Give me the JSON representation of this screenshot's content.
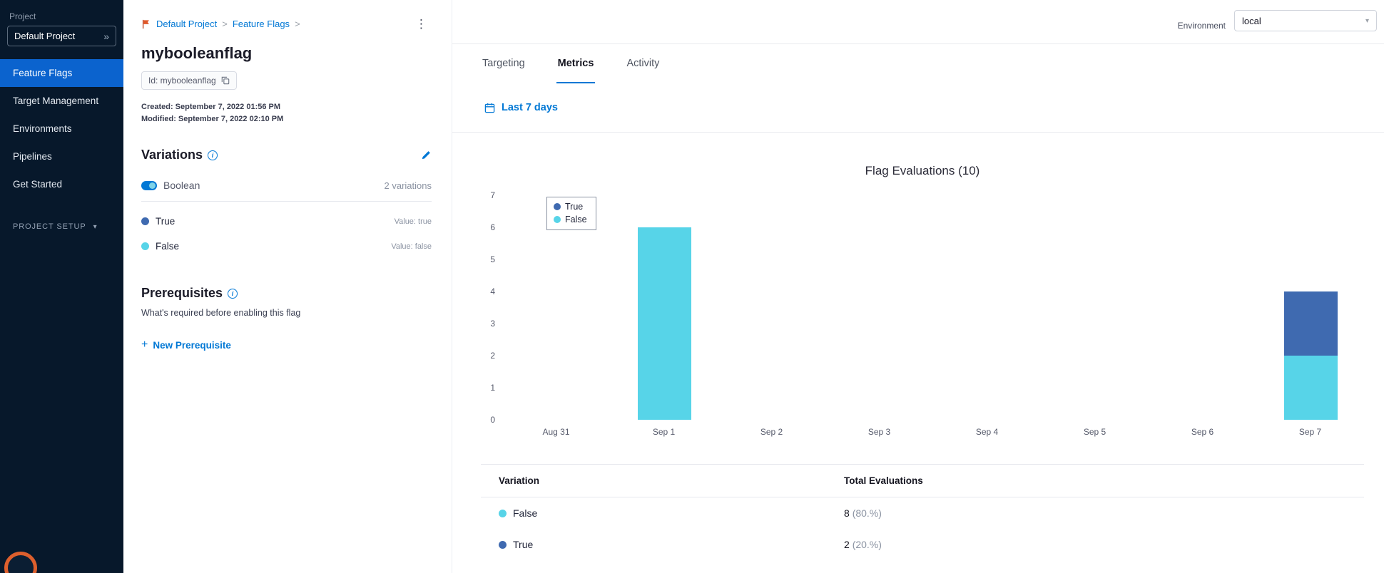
{
  "colors": {
    "accent_blue": "#0278d5",
    "active_nav": "#0b63ce",
    "sidebar_bg": "#07182b",
    "true_color": "#3f6ab0",
    "false_color": "#57d4e8"
  },
  "sidebar": {
    "project_label": "Project",
    "project_name": "Default Project",
    "items": [
      {
        "label": "Feature Flags",
        "active": true
      },
      {
        "label": "Target Management",
        "active": false
      },
      {
        "label": "Environments",
        "active": false
      },
      {
        "label": "Pipelines",
        "active": false
      },
      {
        "label": "Get Started",
        "active": false
      }
    ],
    "project_setup_label": "PROJECT SETUP"
  },
  "topbar": {
    "environment_label": "Environment",
    "environment_value": "local"
  },
  "breadcrumb": {
    "project": "Default Project",
    "section": "Feature Flags",
    "separator": ">"
  },
  "flag": {
    "title": "mybooleanflag",
    "id_badge": "Id: mybooleanflag",
    "created": "Created: September 7, 2022 01:56 PM",
    "modified": "Modified: September 7, 2022 02:10 PM"
  },
  "variations": {
    "heading": "Variations",
    "type_label": "Boolean",
    "count_label": "2 variations",
    "items": [
      {
        "name": "True",
        "value_label": "Value: true",
        "color": "#3f6ab0"
      },
      {
        "name": "False",
        "value_label": "Value: false",
        "color": "#57d4e8"
      }
    ]
  },
  "prerequisites": {
    "heading": "Prerequisites",
    "description": "What's required before enabling this flag",
    "new_button_label": "New Prerequisite"
  },
  "tabs": [
    {
      "label": "Targeting",
      "active": false
    },
    {
      "label": "Metrics",
      "active": true
    },
    {
      "label": "Activity",
      "active": false
    }
  ],
  "metrics": {
    "date_range_label": "Last 7 days"
  },
  "chart_data": {
    "type": "bar",
    "stacked": true,
    "title": "Flag Evaluations (10)",
    "categories": [
      "Aug 31",
      "Sep 1",
      "Sep 2",
      "Sep 3",
      "Sep 4",
      "Sep 5",
      "Sep 6",
      "Sep 7"
    ],
    "series": [
      {
        "name": "True",
        "color": "#3f6ab0",
        "values": [
          0,
          0,
          0,
          0,
          0,
          0,
          0,
          2
        ]
      },
      {
        "name": "False",
        "color": "#57d4e8",
        "values": [
          0,
          6,
          0,
          0,
          0,
          0,
          0,
          2
        ]
      }
    ],
    "xlabel": "",
    "ylabel": "",
    "ylim": [
      0,
      7
    ],
    "yticks": [
      0,
      1,
      2,
      3,
      4,
      5,
      6,
      7
    ],
    "grid": false,
    "legend_position": "top-left"
  },
  "evaluations_table": {
    "headers": [
      "Variation",
      "Total Evaluations"
    ],
    "rows": [
      {
        "name": "False",
        "color": "#57d4e8",
        "count": "8",
        "percent": "(80.%)"
      },
      {
        "name": "True",
        "color": "#3f6ab0",
        "count": "2",
        "percent": "(20.%)"
      }
    ]
  }
}
